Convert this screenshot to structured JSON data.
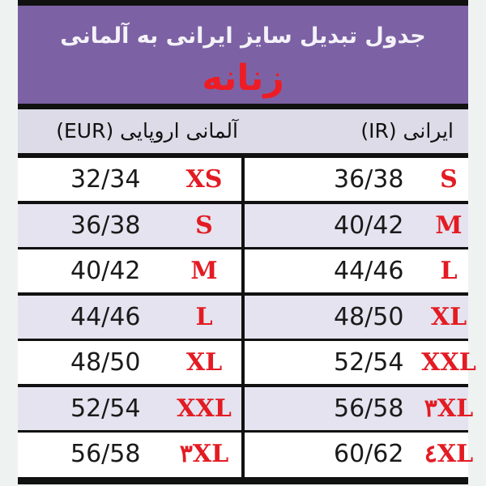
{
  "title": "جدول تبدیل سایز ایرانی به آلمانی",
  "subtitle": "زنانه",
  "headers": {
    "german": "آلمانی اروپایی (EUR)",
    "german_visible": "آلمانی اروپایی (",
    "eur": "EUR",
    "iranian": "ایرانی (IR)"
  },
  "colors": {
    "header_bg": "#7c62a4",
    "size_label": "#e31b23"
  },
  "rows": [
    {
      "eur_size": "XS",
      "eur_value": "32/34",
      "ir_size": "S",
      "ir_value": "36/38"
    },
    {
      "eur_size": "S",
      "eur_value": "36/38",
      "ir_size": "M",
      "ir_value": "40/42"
    },
    {
      "eur_size": "M",
      "eur_value": "40/42",
      "ir_size": "L",
      "ir_value": "44/46"
    },
    {
      "eur_size": "L",
      "eur_value": "44/46",
      "ir_size": "XL",
      "ir_value": "48/50"
    },
    {
      "eur_size": "XL",
      "eur_value": "48/50",
      "ir_size": "XXL",
      "ir_value": "52/54"
    },
    {
      "eur_size": "XXL",
      "eur_value": "52/54",
      "ir_size": "٣XL",
      "ir_value": "56/58"
    },
    {
      "eur_size": "٣XL",
      "eur_value": "56/58",
      "ir_size": "٤XL",
      "ir_value": "60/62"
    }
  ]
}
